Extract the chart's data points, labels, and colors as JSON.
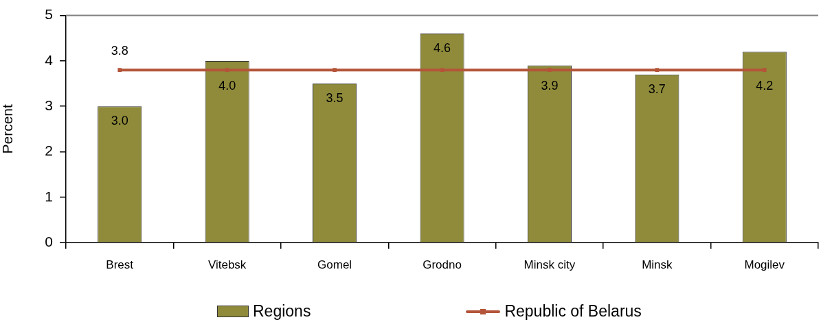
{
  "chart_data": {
    "type": "bar",
    "ylabel": "Percent",
    "categories": [
      "Brest",
      "Vitebsk",
      "Gomel",
      "Grodno",
      "Minsk city",
      "Minsk",
      "Mogilev"
    ],
    "series": [
      {
        "name": "Regions",
        "color": "#8f8b3b",
        "values": [
          3.0,
          4.0,
          3.5,
          4.6,
          3.9,
          3.7,
          4.2
        ],
        "value_labels": [
          "3.0",
          "4.0",
          "3.5",
          "4.6",
          "3.9",
          "3.7",
          "4.2"
        ]
      },
      {
        "name": "Republic of Belarus",
        "type": "line",
        "color": "#b4553a",
        "marker": "square",
        "values": [
          3.8,
          3.8,
          3.8,
          3.8,
          3.8,
          3.8,
          3.8
        ],
        "value_labels": [
          "3.8",
          null,
          null,
          null,
          null,
          null,
          null
        ]
      }
    ],
    "ylim": [
      0,
      5
    ],
    "yticks": [
      0,
      1,
      2,
      3,
      4,
      5
    ],
    "legend": "bottom"
  }
}
